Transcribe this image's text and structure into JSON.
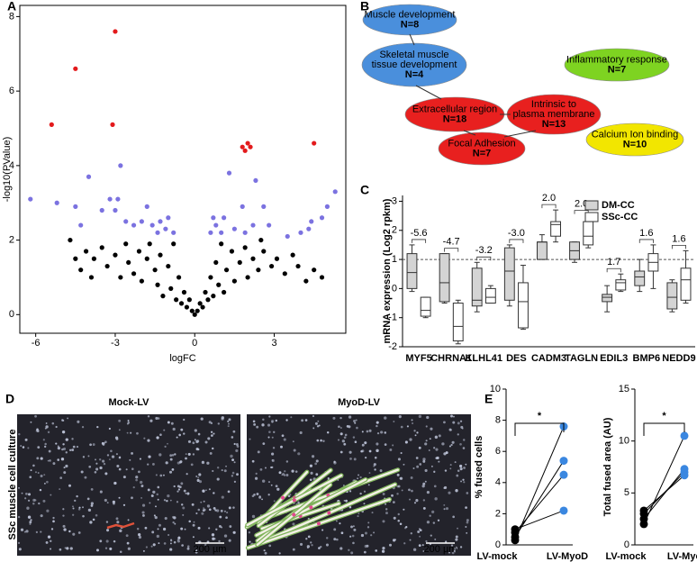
{
  "panel_labels": [
    "A",
    "B",
    "C",
    "D",
    "E"
  ],
  "network": {
    "nodes": [
      {
        "lines": [
          "Muscle development"
        ],
        "count": "N=8",
        "color": "#4a8fdc"
      },
      {
        "lines": [
          "Skeletal muscle",
          "tissue development"
        ],
        "count": "N=4",
        "color": "#4a8fdc"
      },
      {
        "lines": [
          "Extracellular region"
        ],
        "count": "N=18",
        "color": "#e8201f"
      },
      {
        "lines": [
          "Intrinsic to",
          "plasma membrane"
        ],
        "count": "N=13",
        "color": "#e8201f"
      },
      {
        "lines": [
          "Focal Adhesion"
        ],
        "count": "N=7",
        "color": "#e8201f"
      },
      {
        "lines": [
          "Inflammatory response"
        ],
        "count": "N=7",
        "color": "#7ed321"
      },
      {
        "lines": [
          "Calcium Ion binding"
        ],
        "count": "N=10",
        "color": "#f2e600"
      }
    ]
  },
  "images": {
    "side_label": "SSc muscle cell culture",
    "panels": [
      {
        "title": "Mock-LV",
        "scale_bar": "200 µm"
      },
      {
        "title": "MyoD-LV",
        "scale_bar": "200 µm"
      }
    ]
  },
  "chart_data": [
    {
      "type": "scatter",
      "xlabel": "logFC",
      "ylabel": "-log10(PValue)",
      "xlim": [
        -6.6,
        5.7
      ],
      "ylim": [
        -0.5,
        8.3
      ],
      "xticks": [
        -6,
        -3,
        0,
        3
      ],
      "yticks": [
        0,
        2,
        4,
        6,
        8
      ],
      "series": [
        {
          "color": "#000000",
          "x": [
            -4.7,
            -4.5,
            -4.3,
            -4.1,
            -3.8,
            -3.5,
            -3.3,
            -3.0,
            -2.8,
            -2.6,
            -2.5,
            -2.3,
            -2.1,
            -2.0,
            -1.8,
            -1.7,
            -1.5,
            -1.4,
            -1.3,
            -1.2,
            -1.0,
            -0.9,
            -0.8,
            -0.7,
            -0.6,
            -0.5,
            -0.4,
            -0.3,
            -0.2,
            -0.1,
            0,
            0.1,
            0.2,
            0.3,
            0.4,
            0.5,
            0.6,
            0.7,
            0.8,
            0.9,
            1.0,
            1.1,
            1.2,
            1.4,
            1.5,
            1.7,
            1.9,
            2.0,
            2.2,
            2.4,
            2.6,
            2.9,
            3.1,
            3.4,
            3.7,
            3.9,
            4.2,
            4.5,
            4.8,
            2.5,
            -3.9
          ],
          "values": [
            2.0,
            1.5,
            1.2,
            1.7,
            1.5,
            1.8,
            1.3,
            1.6,
            1.0,
            1.9,
            1.4,
            1.1,
            1.7,
            0.9,
            1.5,
            1.9,
            1.2,
            0.8,
            1.6,
            0.5,
            1.3,
            0.7,
            1.9,
            0.4,
            1.0,
            0.3,
            0.6,
            0.2,
            0.4,
            0.1,
            0,
            0.1,
            0.3,
            0.2,
            0.6,
            0.4,
            1.0,
            0.5,
            1.4,
            0.8,
            1.9,
            0.6,
            1.2,
            1.7,
            0.9,
            1.4,
            1.8,
            1.0,
            1.5,
            1.2,
            1.7,
            1.3,
            1.5,
            1.1,
            1.6,
            1.3,
            0.9,
            1.2,
            1.0,
            2.0,
            1.0
          ]
        },
        {
          "color": "#7b72e0",
          "x": [
            -6.2,
            -5.2,
            -4.0,
            -3.5,
            -3.2,
            -2.9,
            -2.8,
            -3.0,
            -2.0,
            -1.6,
            -1.3,
            -1.0,
            -1.4,
            -1.1,
            -0.8,
            -2.3,
            -4.3,
            -4.5,
            -2.6,
            -1.8,
            0.6,
            0.8,
            1.1,
            1.5,
            1.8,
            1.9,
            2.3,
            2.6,
            2.8,
            1.3,
            3.5,
            4.0,
            4.4,
            4.8,
            5.0,
            5.3,
            4.3,
            2.2,
            1.0,
            0.7
          ],
          "values": [
            3.1,
            3.0,
            3.7,
            2.8,
            3.1,
            3.1,
            4.0,
            2.8,
            2.5,
            2.4,
            2.5,
            2.6,
            2.2,
            2.3,
            2.2,
            2.4,
            2.4,
            2.9,
            2.5,
            2.9,
            2.2,
            2.4,
            2.6,
            2.3,
            2.9,
            2.2,
            3.6,
            2.9,
            2.4,
            3.8,
            2.1,
            2.2,
            2.5,
            2.6,
            2.9,
            3.3,
            2.3,
            2.4,
            2.2,
            2.6
          ]
        },
        {
          "color": "#e31a1c",
          "x": [
            -3.0,
            -4.5,
            -5.4,
            -3.1,
            1.8,
            2.0,
            2.1,
            1.9,
            4.5
          ],
          "values": [
            7.6,
            6.6,
            5.1,
            5.1,
            4.5,
            4.6,
            4.5,
            4.4,
            4.6
          ]
        }
      ]
    },
    {
      "type": "box",
      "ylabel": "mRNA expression (Log2 rpkm)",
      "ylim": [
        -2,
        3.2
      ],
      "yticks": [
        -2,
        -1,
        0,
        1,
        2,
        3
      ],
      "reference_line": 1,
      "categories": [
        "MYF5",
        "CHRNA1",
        "KLHL41",
        "DES",
        "CADM3",
        "TAGLN",
        "EDIL3",
        "BMP6",
        "NEDD9"
      ],
      "category_colors": [
        "#3a87d6",
        "#3a87d6",
        "#3a87d6",
        "#3a87d6",
        "#e31a1c",
        "#e31a1c",
        "#e31a1c",
        "#e31a1c",
        "#e31a1c"
      ],
      "annotations": [
        "-5.6",
        "-4.7",
        "-3.2",
        "-3.0",
        "2.0",
        "2.0",
        "1.7",
        "1.6",
        "1.6"
      ],
      "series": [
        {
          "name": "DM-CC",
          "color": "#d4d4d4",
          "min": [
            -0.1,
            -0.5,
            -0.8,
            -0.6,
            1.0,
            0.9,
            -0.8,
            -0.1,
            -0.8
          ],
          "q1": [
            0.0,
            -0.45,
            -0.6,
            -0.4,
            1.0,
            1.0,
            -0.45,
            0.1,
            -0.7
          ],
          "median": [
            0.55,
            0.2,
            -0.4,
            0.6,
            1.6,
            1.3,
            -0.3,
            0.4,
            -0.3
          ],
          "q3": [
            1.2,
            1.2,
            0.7,
            1.4,
            1.6,
            1.6,
            -0.2,
            0.6,
            0.2
          ],
          "max": [
            1.5,
            1.2,
            0.9,
            1.5,
            1.85,
            1.6,
            0.1,
            1.0,
            0.3
          ]
        },
        {
          "name": "SSc-CC",
          "color": "#ffffff",
          "min": [
            -1.0,
            -1.9,
            -0.5,
            -1.4,
            1.6,
            1.4,
            -0.1,
            0.0,
            -0.5
          ],
          "q1": [
            -0.95,
            -1.8,
            -0.5,
            -1.35,
            1.8,
            1.5,
            -0.05,
            0.6,
            -0.4
          ],
          "median": [
            -0.75,
            -1.3,
            -0.3,
            -0.45,
            2.2,
            1.8,
            0.2,
            0.9,
            0.3
          ],
          "q3": [
            -0.3,
            -0.5,
            0.0,
            0.2,
            2.3,
            2.3,
            0.3,
            1.2,
            0.7
          ],
          "max": [
            -0.3,
            -0.4,
            0.1,
            0.8,
            2.7,
            2.5,
            0.5,
            1.5,
            1.3
          ]
        }
      ]
    },
    {
      "type": "dot",
      "ylabel": "% fused cells",
      "significance": "*",
      "ylim": [
        0,
        10
      ],
      "yticks": [
        0,
        2,
        4,
        6,
        8,
        10
      ],
      "categories": [
        "LV-mock",
        "LV-MyoD"
      ],
      "category_colors": [
        "#000000",
        "#3a87e0"
      ],
      "series": [
        {
          "values": [
            0.3,
            7.6
          ]
        },
        {
          "values": [
            0.5,
            5.4
          ]
        },
        {
          "values": [
            0.8,
            4.5
          ]
        },
        {
          "values": [
            1.0,
            2.2
          ]
        }
      ]
    },
    {
      "type": "dot",
      "ylabel": "Total fused area (AU)",
      "significance": "*",
      "ylim": [
        0,
        15
      ],
      "yticks": [
        0,
        5,
        10,
        15
      ],
      "categories": [
        "LV-mock",
        "LV-MyoD"
      ],
      "category_colors": [
        "#000000",
        "#3a87e0"
      ],
      "series": [
        {
          "values": [
            2.0,
            10.5
          ]
        },
        {
          "values": [
            2.5,
            7.3
          ]
        },
        {
          "values": [
            3.0,
            7.0
          ]
        },
        {
          "values": [
            3.3,
            6.7
          ]
        }
      ]
    }
  ]
}
